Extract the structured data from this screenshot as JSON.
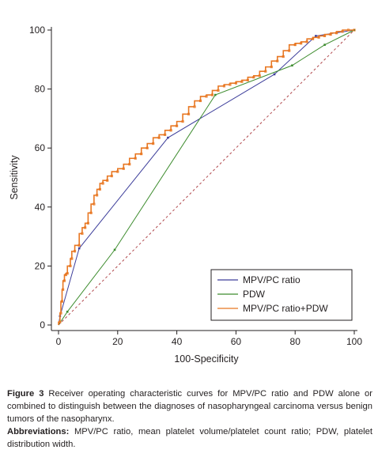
{
  "chart_data": {
    "type": "line",
    "xlabel": "100-Specificity",
    "ylabel": "Sensitivity",
    "xlim": [
      0,
      100
    ],
    "ylim": [
      0,
      100
    ],
    "x_ticks": [
      "0",
      "20",
      "40",
      "60",
      "80",
      "100"
    ],
    "y_ticks": [
      "0",
      "20",
      "40",
      "60",
      "80",
      "100"
    ],
    "grid": false,
    "legend_position": "bottom-right",
    "reference_line": {
      "points": [
        [
          0,
          0
        ],
        [
          100,
          100
        ]
      ],
      "color": "#b0474c",
      "style": "dashed"
    },
    "series": [
      {
        "name": "MPV/PC ratio",
        "color": "#3e3f9b",
        "points": [
          [
            0,
            0
          ],
          [
            0.5,
            3
          ],
          [
            7,
            26
          ],
          [
            37,
            63.5
          ],
          [
            73,
            85
          ],
          [
            87,
            98
          ],
          [
            100,
            100
          ]
        ]
      },
      {
        "name": "PDW",
        "color": "#3d8c2e",
        "points": [
          [
            0,
            0
          ],
          [
            3,
            4.5
          ],
          [
            19,
            25.5
          ],
          [
            53,
            78
          ],
          [
            79,
            88
          ],
          [
            90,
            95
          ],
          [
            100,
            100
          ]
        ]
      },
      {
        "name": "MPV/PC ratio+PDW",
        "color": "#e87722",
        "points": [
          [
            0,
            0
          ],
          [
            0.5,
            1
          ],
          [
            0.8,
            4
          ],
          [
            1.2,
            8
          ],
          [
            1.5,
            12
          ],
          [
            2,
            15
          ],
          [
            2.5,
            17
          ],
          [
            3,
            17.5
          ],
          [
            4,
            20
          ],
          [
            4.5,
            22.5
          ],
          [
            5.5,
            25
          ],
          [
            7,
            27
          ],
          [
            8,
            31
          ],
          [
            9,
            33
          ],
          [
            10,
            34.5
          ],
          [
            11,
            38
          ],
          [
            12,
            41
          ],
          [
            13,
            44
          ],
          [
            14,
            46
          ],
          [
            15,
            48
          ],
          [
            16.5,
            49
          ],
          [
            18,
            50.5
          ],
          [
            20,
            52
          ],
          [
            22,
            53
          ],
          [
            24,
            54.5
          ],
          [
            26,
            56.5
          ],
          [
            28,
            58
          ],
          [
            30,
            60
          ],
          [
            32,
            61.5
          ],
          [
            34,
            63.5
          ],
          [
            36,
            64.5
          ],
          [
            38,
            66
          ],
          [
            40,
            67.5
          ],
          [
            42,
            69
          ],
          [
            44,
            71.5
          ],
          [
            46,
            74
          ],
          [
            48,
            76
          ],
          [
            50,
            77.5
          ],
          [
            52,
            78
          ],
          [
            54,
            79.5
          ],
          [
            56,
            81
          ],
          [
            58,
            81.5
          ],
          [
            60,
            82
          ],
          [
            62,
            82.5
          ],
          [
            64,
            83
          ],
          [
            66,
            84
          ],
          [
            68,
            84.5
          ],
          [
            70,
            86
          ],
          [
            72,
            87.5
          ],
          [
            74,
            89.5
          ],
          [
            76,
            91
          ],
          [
            78,
            93
          ],
          [
            80,
            95
          ],
          [
            82,
            95.5
          ],
          [
            84,
            96
          ],
          [
            86,
            97
          ],
          [
            88,
            97.5
          ],
          [
            90,
            98
          ],
          [
            92,
            98.5
          ],
          [
            94,
            99
          ],
          [
            96,
            99.5
          ],
          [
            98,
            100
          ],
          [
            100,
            100
          ]
        ]
      }
    ]
  },
  "caption": {
    "label": "Figure 3",
    "text": " Receiver operating characteristic curves for MPV/PC ratio and PDW alone or combined to distinguish between the diagnoses of nasopharyngeal carcinoma versus benign tumors of the nasopharynx.",
    "abbrev_label": "Abbreviations:",
    "abbrev_text": " MPV/PC ratio, mean platelet volume/platelet count ratio; PDW, platelet distribution width."
  }
}
